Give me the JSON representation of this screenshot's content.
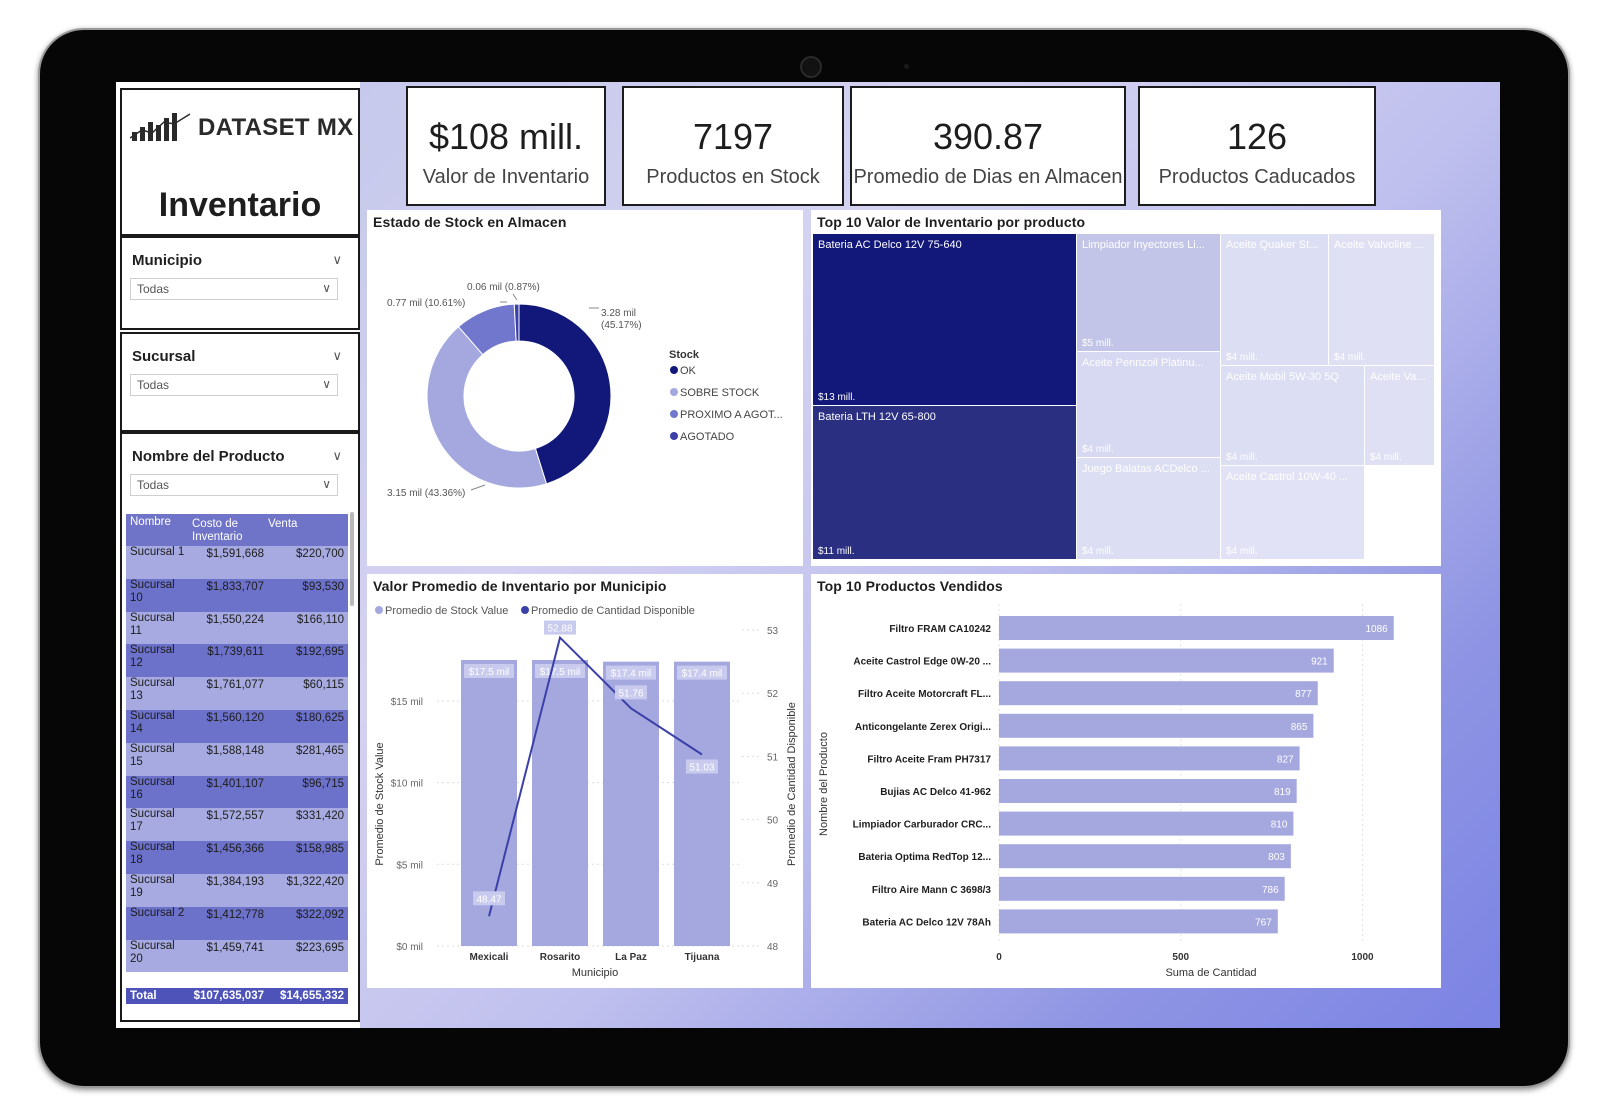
{
  "brand": {
    "name": "DATASET MX"
  },
  "report_title": "Inventario",
  "slicers": [
    {
      "label": "Municipio",
      "value": "Todas"
    },
    {
      "label": "Sucursal",
      "value": "Todas"
    },
    {
      "label": "Nombre del Producto",
      "value": "Todas"
    }
  ],
  "table": {
    "headers": [
      "Nombre",
      "Costo de Inventario",
      "Venta"
    ],
    "rows": [
      [
        "Sucursal 1",
        "$1,591,668",
        "$220,700"
      ],
      [
        "Sucursal 10",
        "$1,833,707",
        "$93,530"
      ],
      [
        "Sucursal 11",
        "$1,550,224",
        "$166,110"
      ],
      [
        "Sucursal 12",
        "$1,739,611",
        "$192,695"
      ],
      [
        "Sucursal 13",
        "$1,761,077",
        "$60,115"
      ],
      [
        "Sucursal 14",
        "$1,560,120",
        "$180,625"
      ],
      [
        "Sucursal 15",
        "$1,588,148",
        "$281,465"
      ],
      [
        "Sucursal 16",
        "$1,401,107",
        "$96,715"
      ],
      [
        "Sucursal 17",
        "$1,572,557",
        "$331,420"
      ],
      [
        "Sucursal 18",
        "$1,456,366",
        "$158,985"
      ],
      [
        "Sucursal 19",
        "$1,384,193",
        "$1,322,420"
      ],
      [
        "Sucursal 2",
        "$1,412,778",
        "$322,092"
      ],
      [
        "Sucursal 20",
        "$1,459,741",
        "$223,695"
      ]
    ],
    "total": [
      "Total",
      "$107,635,037",
      "$14,655,332"
    ]
  },
  "kpis": [
    {
      "value": "$108 mill.",
      "label": "Valor de Inventario"
    },
    {
      "value": "7197",
      "label": "Productos en Stock"
    },
    {
      "value": "390.87",
      "label": "Promedio de Dias en Almacen"
    },
    {
      "value": "126",
      "label": "Productos Caducados"
    }
  ],
  "colors": {
    "dark": "#12177a",
    "mid": "#7177cc",
    "light": "#a4a8df",
    "pale": "#dcdef3"
  },
  "chart_data": [
    {
      "type": "pie",
      "title": "Estado de Stock en Almacen",
      "legend_title": "Stock",
      "legend_position": "right",
      "slices": [
        {
          "name": "OK",
          "value": 3.28,
          "label": "3.28 mil (45.17%)",
          "color": "#12177a"
        },
        {
          "name": "SOBRE STOCK",
          "value": 3.15,
          "label": "3.15 mil (43.36%)",
          "color": "#a4a8df"
        },
        {
          "name": "PROXIMO A AGOT...",
          "value": 0.77,
          "label": "0.77 mil (10.61%)",
          "color": "#7177cc"
        },
        {
          "name": "AGOTADO",
          "value": 0.06,
          "label": "0.06 mil (0.87%)",
          "color": "#3b40a8"
        }
      ]
    },
    {
      "type": "treemap",
      "title": "Top 10 Valor de Inventario por producto",
      "items": [
        {
          "name": "Bateria AC Delco 12V 75-640",
          "value": "$13 mill."
        },
        {
          "name": "Bateria LTH 12V 65-800",
          "value": "$11 mill."
        },
        {
          "name": "Limpiador Inyectores Li...",
          "value": "$5 mill."
        },
        {
          "name": "Aceite Pennzoil Platinu...",
          "value": "$4 mill."
        },
        {
          "name": "Juego Balatas ACDelco ...",
          "value": "$4 mill."
        },
        {
          "name": "Aceite Quaker St...",
          "value": "$4 mill."
        },
        {
          "name": "Aceite Valvoline ...",
          "value": "$4 mill."
        },
        {
          "name": "Aceite Mobil 5W-30 5Q",
          "value": "$4 mill."
        },
        {
          "name": "Aceite Va...",
          "value": "$4 mill."
        },
        {
          "name": "Aceite Castrol 10W-40 ...",
          "value": "$4 mill."
        }
      ]
    },
    {
      "type": "bar",
      "title": "Valor Promedio de Inventario por Municipio",
      "xlabel": "Municipio",
      "ylabel": "Promedio de Stock Value",
      "y2label": "Promedio de Cantidad Disponible",
      "categories": [
        "Mexicali",
        "Rosarito",
        "La Paz",
        "Tijuana"
      ],
      "ylim": [
        0,
        17.5
      ],
      "yticks": [
        "$0 mil",
        "$5 mil",
        "$10 mil",
        "$15 mil"
      ],
      "y2lim": [
        48,
        53
      ],
      "y2ticks": [
        "48",
        "49",
        "50",
        "51",
        "52",
        "53"
      ],
      "series": [
        {
          "name": "Promedio de Stock Value",
          "values": [
            17.5,
            17.5,
            17.4,
            17.4
          ],
          "labels": [
            "$17.5 mil",
            "$17.5 mil",
            "$17.4 mil",
            "$17.4 mil"
          ]
        },
        {
          "name": "Promedio de Cantidad Disponible",
          "values": [
            48.47,
            52.88,
            51.76,
            51.03
          ],
          "labels": [
            "48.47",
            "52.88",
            "51.76",
            "51.03"
          ]
        }
      ]
    },
    {
      "type": "bar",
      "title": "Top 10 Productos Vendidos",
      "xlabel": "Suma de Cantidad",
      "ylabel": "Nombre del Producto",
      "xlim": [
        0,
        1150
      ],
      "xticks": [
        "0",
        "500",
        "1000"
      ],
      "categories": [
        "Filtro FRAM CA10242",
        "Aceite Castrol Edge 0W-20 ...",
        "Filtro Aceite Motorcraft FL...",
        "Anticongelante Zerex Origi...",
        "Filtro Aceite Fram PH7317",
        "Bujias AC Delco 41-962",
        "Limpiador Carburador CRC...",
        "Bateria Optima RedTop 12...",
        "Filtro Aire Mann C 3698/3",
        "Bateria AC Delco 12V 78Ah"
      ],
      "values": [
        1086,
        921,
        877,
        865,
        827,
        819,
        810,
        803,
        786,
        767
      ]
    }
  ]
}
